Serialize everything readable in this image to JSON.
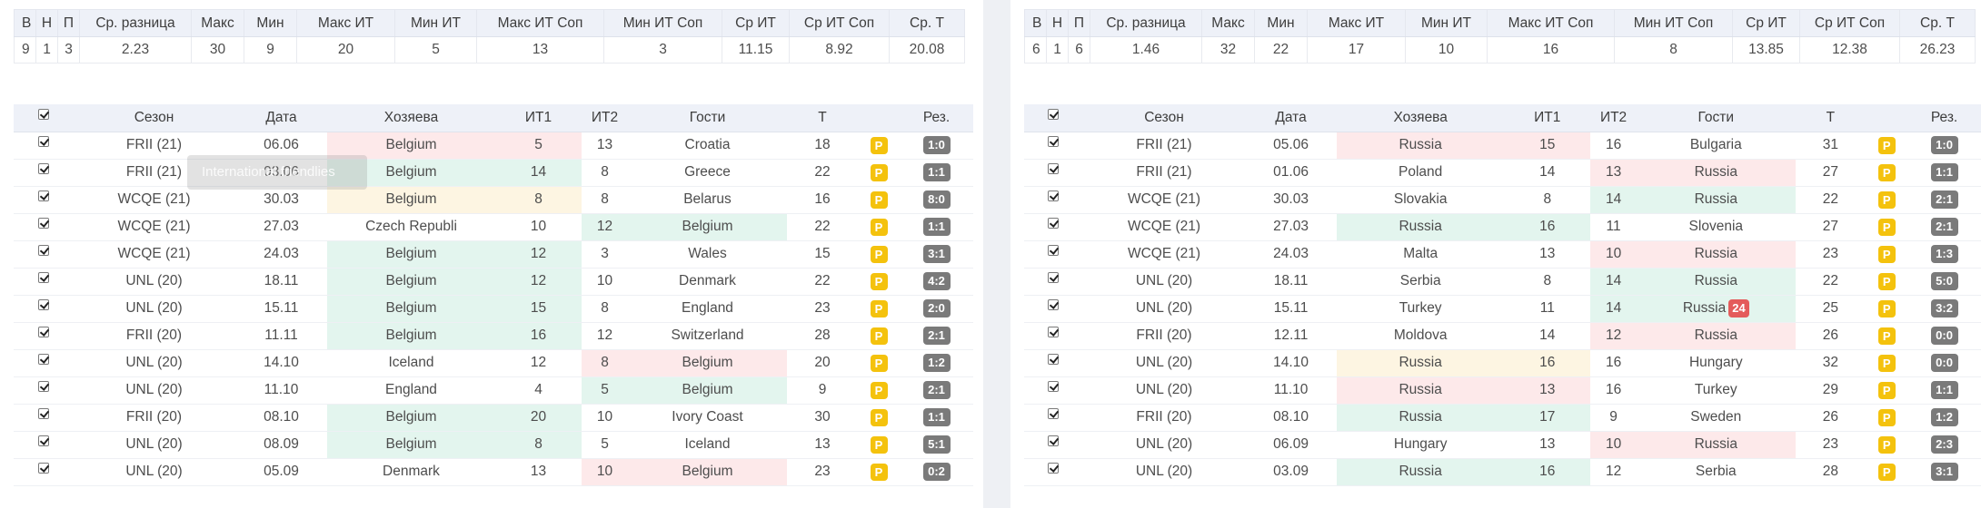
{
  "colors": {
    "green_bg": "#e3f5ee",
    "red_bg": "#fde9ea",
    "yellow_bg": "#fdf5e2",
    "p_badge": "#f4c20d",
    "result_badge": "#7a7a7a",
    "alert_badge": "#e45b5b",
    "header_bg": "#eef1f8"
  },
  "stats_headers": [
    "В",
    "Н",
    "П",
    "Ср. разница",
    "Макс",
    "Мин",
    "Макс ИТ",
    "Мин ИТ",
    "Макс ИТ Соп",
    "Мин ИТ Соп",
    "Ср ИТ",
    "Ср ИТ Соп",
    "Ср. Т"
  ],
  "match_headers": {
    "season": "Сезон",
    "date": "Дата",
    "home": "Хозяева",
    "it1": "ИТ1",
    "it2": "ИТ2",
    "away": "Гости",
    "total": "Т",
    "result": "Рез."
  },
  "tooltip": "International friendlies",
  "left": {
    "stats": [
      "9",
      "1",
      "3",
      "2.23",
      "30",
      "9",
      "20",
      "5",
      "13",
      "3",
      "11.15",
      "8.92",
      "20.08"
    ],
    "matches": [
      {
        "season": "FRII (21)",
        "date": "06.06",
        "home": "Belgium",
        "it1": "5",
        "it2": "13",
        "away": "Croatia",
        "total": "18",
        "p": "P",
        "result": "1:0",
        "hl": "home",
        "hc": "red"
      },
      {
        "season": "FRII (21)",
        "date": "03.06",
        "home": "Belgium",
        "it1": "14",
        "it2": "8",
        "away": "Greece",
        "total": "22",
        "p": "P",
        "result": "1:1",
        "hl": "home",
        "hc": "green"
      },
      {
        "season": "WCQE (21)",
        "date": "30.03",
        "home": "Belgium",
        "it1": "8",
        "it2": "8",
        "away": "Belarus",
        "total": "16",
        "p": "P",
        "result": "8:0",
        "hl": "home",
        "hc": "yellow"
      },
      {
        "season": "WCQE (21)",
        "date": "27.03",
        "home": "Czech Republi",
        "it1": "10",
        "it2": "12",
        "away": "Belgium",
        "total": "22",
        "p": "P",
        "result": "1:1",
        "hl": "away",
        "hc": "green"
      },
      {
        "season": "WCQE (21)",
        "date": "24.03",
        "home": "Belgium",
        "it1": "12",
        "it2": "3",
        "away": "Wales",
        "total": "15",
        "p": "P",
        "result": "3:1",
        "hl": "home",
        "hc": "green"
      },
      {
        "season": "UNL (20)",
        "date": "18.11",
        "home": "Belgium",
        "it1": "12",
        "it2": "10",
        "away": "Denmark",
        "total": "22",
        "p": "P",
        "result": "4:2",
        "hl": "home",
        "hc": "green"
      },
      {
        "season": "UNL (20)",
        "date": "15.11",
        "home": "Belgium",
        "it1": "15",
        "it2": "8",
        "away": "England",
        "total": "23",
        "p": "P",
        "result": "2:0",
        "hl": "home",
        "hc": "green"
      },
      {
        "season": "FRII (20)",
        "date": "11.11",
        "home": "Belgium",
        "it1": "16",
        "it2": "12",
        "away": "Switzerland",
        "total": "28",
        "p": "P",
        "result": "2:1",
        "hl": "home",
        "hc": "green"
      },
      {
        "season": "UNL (20)",
        "date": "14.10",
        "home": "Iceland",
        "it1": "12",
        "it2": "8",
        "away": "Belgium",
        "total": "20",
        "p": "P",
        "result": "1:2",
        "hl": "away",
        "hc": "red"
      },
      {
        "season": "UNL (20)",
        "date": "11.10",
        "home": "England",
        "it1": "4",
        "it2": "5",
        "away": "Belgium",
        "total": "9",
        "p": "P",
        "result": "2:1",
        "hl": "away",
        "hc": "green"
      },
      {
        "season": "FRII (20)",
        "date": "08.10",
        "home": "Belgium",
        "it1": "20",
        "it2": "10",
        "away": "Ivory Coast",
        "total": "30",
        "p": "P",
        "result": "1:1",
        "hl": "home",
        "hc": "green"
      },
      {
        "season": "UNL (20)",
        "date": "08.09",
        "home": "Belgium",
        "it1": "8",
        "it2": "5",
        "away": "Iceland",
        "total": "13",
        "p": "P",
        "result": "5:1",
        "hl": "home",
        "hc": "green"
      },
      {
        "season": "UNL (20)",
        "date": "05.09",
        "home": "Denmark",
        "it1": "13",
        "it2": "10",
        "away": "Belgium",
        "total": "23",
        "p": "P",
        "result": "0:2",
        "hl": "away",
        "hc": "red"
      }
    ]
  },
  "right": {
    "stats": [
      "6",
      "1",
      "6",
      "1.46",
      "32",
      "22",
      "17",
      "10",
      "16",
      "8",
      "13.85",
      "12.38",
      "26.23"
    ],
    "matches": [
      {
        "season": "FRII (21)",
        "date": "05.06",
        "home": "Russia",
        "it1": "15",
        "it2": "16",
        "away": "Bulgaria",
        "total": "31",
        "p": "P",
        "result": "1:0",
        "hl": "home",
        "hc": "red"
      },
      {
        "season": "FRII (21)",
        "date": "01.06",
        "home": "Poland",
        "it1": "14",
        "it2": "13",
        "away": "Russia",
        "total": "27",
        "p": "P",
        "result": "1:1",
        "hl": "away",
        "hc": "red"
      },
      {
        "season": "WCQE (21)",
        "date": "30.03",
        "home": "Slovakia",
        "it1": "8",
        "it2": "14",
        "away": "Russia",
        "total": "22",
        "p": "P",
        "result": "2:1",
        "hl": "away",
        "hc": "green"
      },
      {
        "season": "WCQE (21)",
        "date": "27.03",
        "home": "Russia",
        "it1": "16",
        "it2": "11",
        "away": "Slovenia",
        "total": "27",
        "p": "P",
        "result": "2:1",
        "hl": "home",
        "hc": "green"
      },
      {
        "season": "WCQE (21)",
        "date": "24.03",
        "home": "Malta",
        "it1": "13",
        "it2": "10",
        "away": "Russia",
        "total": "23",
        "p": "P",
        "result": "1:3",
        "hl": "away",
        "hc": "red"
      },
      {
        "season": "UNL (20)",
        "date": "18.11",
        "home": "Serbia",
        "it1": "8",
        "it2": "14",
        "away": "Russia",
        "total": "22",
        "p": "P",
        "result": "5:0",
        "hl": "away",
        "hc": "green"
      },
      {
        "season": "UNL (20)",
        "date": "15.11",
        "home": "Turkey",
        "it1": "11",
        "it2": "14",
        "away": "Russia",
        "away_badge": "24",
        "total": "25",
        "p": "P",
        "result": "3:2",
        "hl": "away",
        "hc": "green"
      },
      {
        "season": "FRII (20)",
        "date": "12.11",
        "home": "Moldova",
        "it1": "14",
        "it2": "12",
        "away": "Russia",
        "total": "26",
        "p": "P",
        "result": "0:0",
        "hl": "away",
        "hc": "red"
      },
      {
        "season": "UNL (20)",
        "date": "14.10",
        "home": "Russia",
        "it1": "16",
        "it2": "16",
        "away": "Hungary",
        "total": "32",
        "p": "P",
        "result": "0:0",
        "hl": "home",
        "hc": "yellow"
      },
      {
        "season": "UNL (20)",
        "date": "11.10",
        "home": "Russia",
        "it1": "13",
        "it2": "16",
        "away": "Turkey",
        "total": "29",
        "p": "P",
        "result": "1:1",
        "hl": "home",
        "hc": "red"
      },
      {
        "season": "FRII (20)",
        "date": "08.10",
        "home": "Russia",
        "it1": "17",
        "it2": "9",
        "away": "Sweden",
        "total": "26",
        "p": "P",
        "result": "1:2",
        "hl": "home",
        "hc": "green"
      },
      {
        "season": "UNL (20)",
        "date": "06.09",
        "home": "Hungary",
        "it1": "13",
        "it2": "10",
        "away": "Russia",
        "total": "23",
        "p": "P",
        "result": "2:3",
        "hl": "away",
        "hc": "red"
      },
      {
        "season": "UNL (20)",
        "date": "03.09",
        "home": "Russia",
        "it1": "16",
        "it2": "12",
        "away": "Serbia",
        "total": "28",
        "p": "P",
        "result": "3:1",
        "hl": "home",
        "hc": "green"
      }
    ]
  }
}
